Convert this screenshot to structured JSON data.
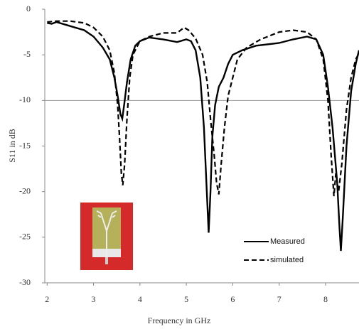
{
  "chart_data": {
    "type": "line",
    "xlabel": "Frequency in GHz",
    "ylabel": "S11 in dB",
    "xlim": [
      1.95,
      8.72
    ],
    "ylim": [
      -30,
      0
    ],
    "xticks": [
      2,
      3,
      4,
      5,
      6,
      7,
      8
    ],
    "yticks": [
      0,
      -5,
      -10,
      -15,
      -20,
      -25,
      -30
    ],
    "hline": -10,
    "series": [
      {
        "name": "Measured",
        "color": "#000000",
        "dash": false,
        "x": [
          2.0,
          2.1,
          2.2,
          2.4,
          2.6,
          2.8,
          3.0,
          3.2,
          3.35,
          3.45,
          3.52,
          3.58,
          3.62,
          3.66,
          3.72,
          3.8,
          3.9,
          4.0,
          4.2,
          4.5,
          4.8,
          5.0,
          5.1,
          5.2,
          5.3,
          5.38,
          5.44,
          5.48,
          5.52,
          5.56,
          5.62,
          5.7,
          5.8,
          5.9,
          6.0,
          6.2,
          6.5,
          7.0,
          7.3,
          7.6,
          7.8,
          7.95,
          8.05,
          8.15,
          8.25,
          8.3,
          8.33,
          8.37,
          8.45,
          8.55,
          8.65,
          8.72
        ],
        "values": [
          -1.5,
          -1.6,
          -1.4,
          -1.7,
          -2.0,
          -2.3,
          -3.0,
          -4.2,
          -5.5,
          -7.5,
          -9.5,
          -11.5,
          -12.0,
          -10.5,
          -8.0,
          -5.5,
          -4.0,
          -3.5,
          -3.1,
          -3.3,
          -3.6,
          -3.3,
          -3.5,
          -4.5,
          -7.5,
          -13,
          -20,
          -24.5,
          -20,
          -14,
          -10.5,
          -8.5,
          -7.5,
          -6,
          -5.0,
          -4.5,
          -4.0,
          -3.7,
          -3.3,
          -3.0,
          -3.3,
          -5.0,
          -8.5,
          -13,
          -19,
          -24,
          -26.5,
          -23,
          -15,
          -9,
          -6.0,
          -4.5
        ]
      },
      {
        "name": "simulated",
        "color": "#000000",
        "dash": true,
        "x": [
          2.0,
          2.2,
          2.5,
          2.8,
          3.0,
          3.2,
          3.35,
          3.45,
          3.52,
          3.56,
          3.6,
          3.63,
          3.67,
          3.72,
          3.78,
          3.85,
          4.0,
          4.2,
          4.5,
          4.8,
          4.95,
          5.05,
          5.2,
          5.35,
          5.45,
          5.52,
          5.6,
          5.65,
          5.7,
          5.75,
          5.82,
          5.9,
          6.0,
          6.1,
          6.3,
          6.6,
          7.0,
          7.3,
          7.6,
          7.8,
          7.95,
          8.05,
          8.12,
          8.18,
          8.22,
          8.28,
          8.35,
          8.45,
          8.55,
          8.65,
          8.72
        ],
        "values": [
          -1.4,
          -1.3,
          -1.3,
          -1.5,
          -2.0,
          -3.0,
          -4.5,
          -7,
          -10.5,
          -14,
          -18,
          -19.3,
          -17,
          -12,
          -7.5,
          -5.0,
          -3.5,
          -3.0,
          -2.6,
          -2.6,
          -2.0,
          -2.3,
          -3.2,
          -5,
          -8,
          -12,
          -16,
          -19,
          -20.3,
          -17,
          -13,
          -9.5,
          -7.5,
          -5.5,
          -4.2,
          -3.3,
          -2.5,
          -2.3,
          -2.5,
          -3.3,
          -5.5,
          -10,
          -16,
          -20.5,
          -18,
          -20,
          -17,
          -11,
          -7.5,
          -5.5,
          -4.8
        ]
      }
    ]
  }
}
